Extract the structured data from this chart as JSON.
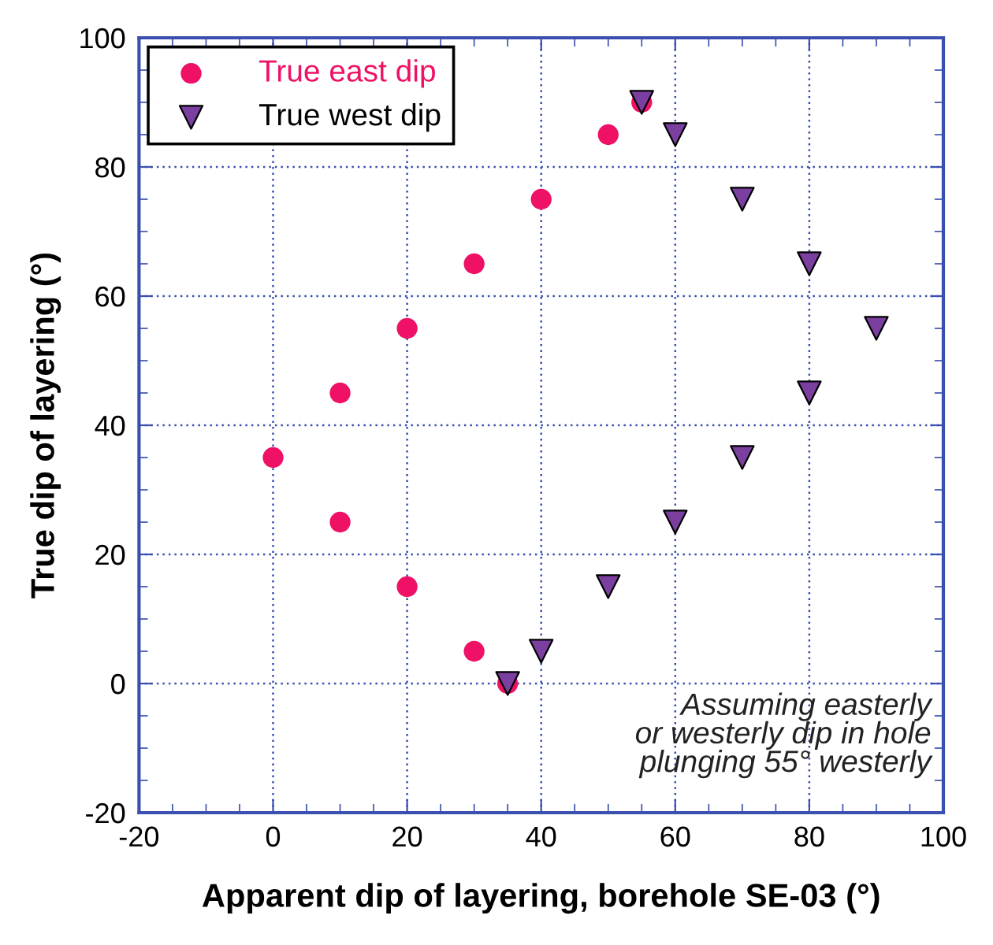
{
  "chart_data": {
    "type": "scatter",
    "xlabel": "Apparent dip of layering, borehole SE-03 (°)",
    "ylabel": "True dip of layering (°)",
    "xlim": [
      -20,
      100
    ],
    "xticks": [
      -20,
      0,
      20,
      40,
      60,
      80,
      100
    ],
    "ylim": [
      -20,
      100
    ],
    "yticks": [
      -20,
      0,
      20,
      40,
      60,
      80,
      100
    ],
    "grid": true,
    "legend": "top left",
    "series": [
      {
        "name": "True east dip",
        "color": "#ee1166",
        "marker": "circle",
        "x": [
          0,
          10,
          10,
          20,
          20,
          30,
          30,
          40,
          35,
          50,
          55
        ],
        "values": [
          35,
          45,
          25,
          55,
          15,
          65,
          5,
          75,
          0,
          85,
          90
        ]
      },
      {
        "name": "True west dip",
        "color": "#7b3fa0",
        "marker": "triangle",
        "x": [
          55,
          60,
          70,
          80,
          90,
          80,
          70,
          60,
          50,
          40,
          35
        ],
        "values": [
          90,
          85,
          75,
          65,
          55,
          45,
          35,
          25,
          15,
          5,
          0
        ]
      }
    ],
    "annotations": [
      "Assuming easterly\nor westerly dip in hole\nplunging 55° westerly"
    ]
  }
}
